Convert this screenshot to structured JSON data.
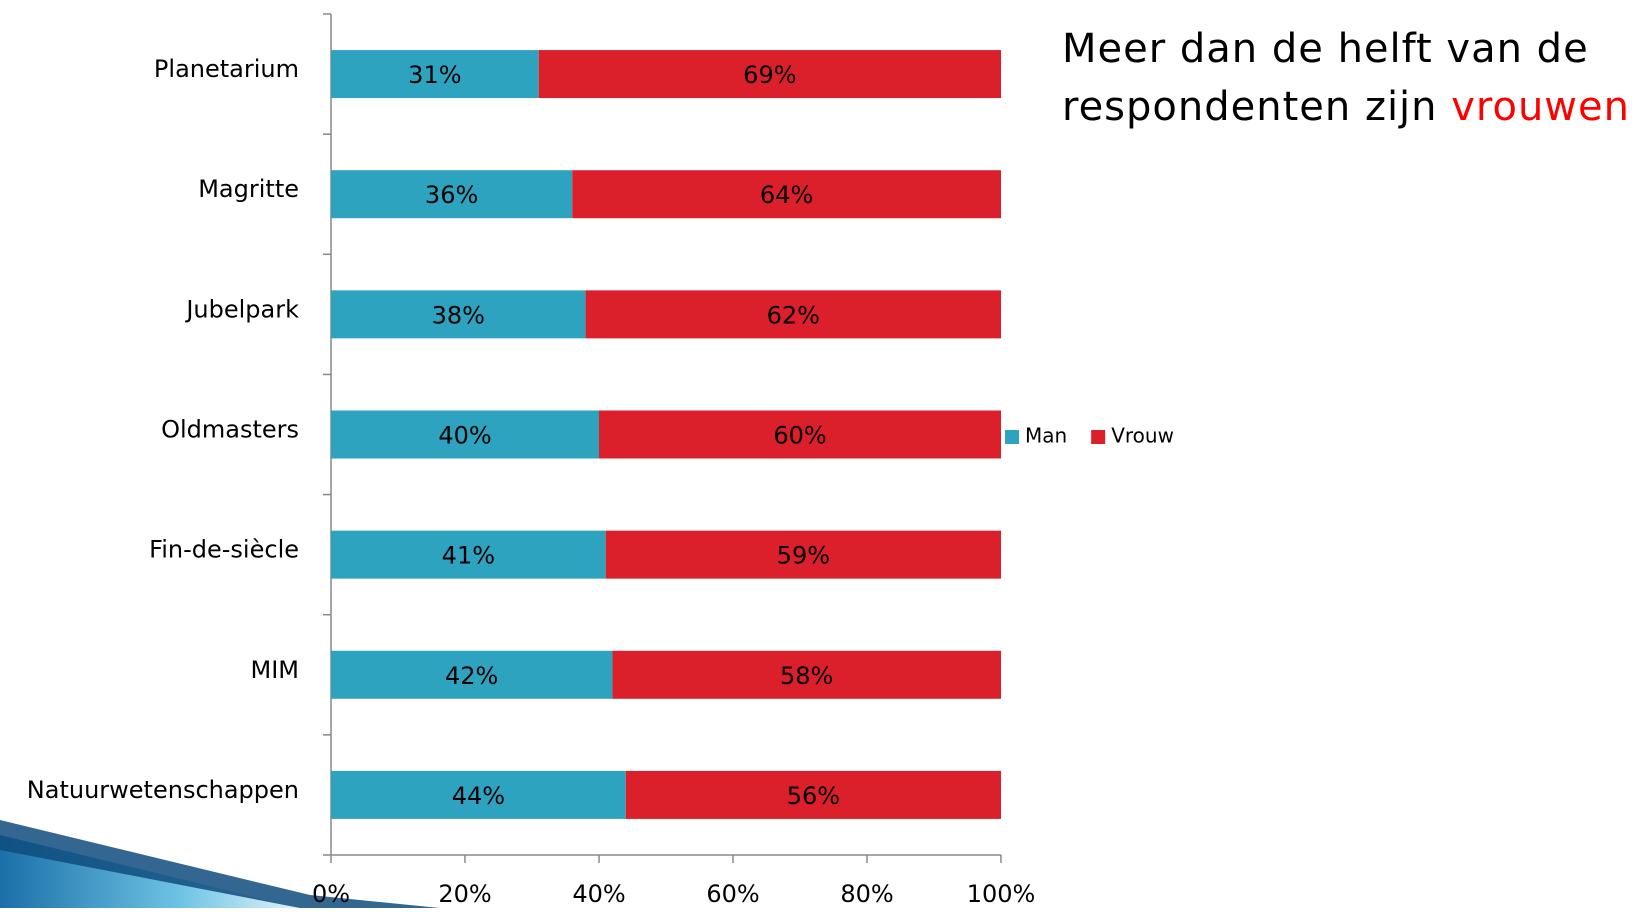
{
  "chart_data": {
    "type": "stacked_bar_horizontal",
    "annotation": {
      "text": "Meer dan de helft van de respondenten zijn",
      "highlight": "vrouwen",
      "highlight_color": "#ff0000"
    },
    "categories": [
      "Planetarium",
      "Magritte",
      "Jubelpark",
      "Oldmasters",
      "Fin-de-siècle",
      "MIM",
      "Natuurwetenschappen"
    ],
    "series": [
      {
        "name": "Man",
        "color": "#2ea3c0",
        "values": [
          31,
          36,
          38,
          40,
          41,
          42,
          44
        ],
        "value_labels": [
          "31%",
          "36%",
          "38%",
          "40%",
          "41%",
          "42%",
          "44%"
        ]
      },
      {
        "name": "Vrouw",
        "color": "#db1f2b",
        "values": [
          69,
          64,
          62,
          60,
          59,
          58,
          56
        ],
        "value_labels": [
          "69%",
          "64%",
          "62%",
          "60%",
          "59%",
          "58%",
          "56%"
        ]
      }
    ],
    "xlim": [
      0,
      100
    ],
    "xticks": [
      {
        "value": 0,
        "label": "0%"
      },
      {
        "value": 20,
        "label": "20%"
      },
      {
        "value": 40,
        "label": "40%"
      },
      {
        "value": 60,
        "label": "60%"
      },
      {
        "value": 80,
        "label": "80%"
      },
      {
        "value": 100,
        "label": "100%"
      }
    ],
    "legend": "right"
  }
}
